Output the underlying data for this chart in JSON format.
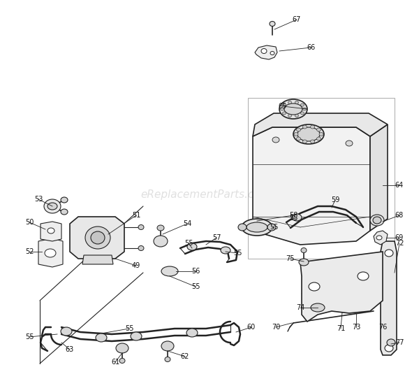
{
  "bg_color": "#ffffff",
  "watermark": "eReplacementParts.com",
  "watermark_color": "#cccccc",
  "line_color": "#222222",
  "label_color": "#111111",
  "figsize": [
    5.9,
    5.55
  ],
  "dpi": 100,
  "border_color": "#888888",
  "part_fill": "#f5f5f5",
  "part_fill_dark": "#e0e0e0",
  "part_fill_mid": "#ebebeb"
}
